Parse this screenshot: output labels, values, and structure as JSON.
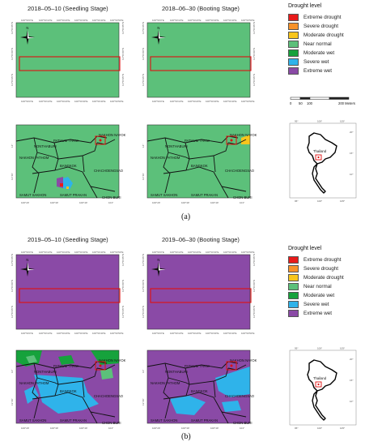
{
  "colors": {
    "extreme_drought": "#e81b1b",
    "severe_drought": "#f7922a",
    "moderate_drought": "#f8c51c",
    "near_normal": "#5cc07a",
    "moderate_wet": "#16a23c",
    "severe_wet": "#2fb3ea",
    "extreme_wet": "#8a4aa6",
    "box": "#e01010"
  },
  "legend": {
    "header": "Drought level",
    "items": [
      "Extreme drought",
      "Severe drought",
      "Moderate drought",
      "Near normal",
      "Moderate wet",
      "Severe wet",
      "Extreme wet"
    ]
  },
  "scalebar": {
    "labels": [
      "0",
      "50",
      "100",
      "200 Meters"
    ]
  },
  "panel_a": {
    "map1_title": "2018–05–10 (Seedling Stage)",
    "map2_title": "2018–06–30 (Booting Stage)",
    "label": "(a)",
    "map1_fill": "near_normal",
    "map2_fill": "near_normal"
  },
  "panel_b": {
    "map1_title": "2019–05–10 (Seedling Stage)",
    "map2_title": "2019–06–30 (Booting Stage)",
    "label": "(b)",
    "map1_fill": "extreme_wet",
    "map2_fill": "extreme_wet"
  },
  "place_labels": {
    "pathum_thani": "PATHUM THANI",
    "nakhon_nayok": "NAKHON NAYOK",
    "nonthaburi": "NONTHABURI",
    "nakhon_pathom": "NAKHON PATHOM",
    "bangkok": "BANGKOK",
    "chachoengsao": "CHACHOENGSAO",
    "samut_sakhon": "SAMUT SAKHON",
    "samut_prakan": "SAMUT PRAKAN",
    "chon_buri": "CHON BURI",
    "thailand": "Thailand"
  },
  "inset_ticks": {
    "x": [
      "95°",
      "100°",
      "105°"
    ],
    "y": [
      "20°",
      "15°",
      "10°"
    ]
  },
  "map_ticks_x": [
    "100°54'0\"E",
    "100°54'10\"E",
    "100°54'20\"E",
    "100°54'30\"E",
    "100°54'40\"E",
    "100°54'50\"E"
  ],
  "map_ticks_y": [
    "13°56'45\"N",
    "13°56'40\"N",
    "13°56'35\"N"
  ],
  "region_ticks_x": [
    "100°20'",
    "100°30'",
    "100°40'",
    "101°"
  ],
  "region_ticks_y": [
    "14°",
    "13°40'"
  ]
}
